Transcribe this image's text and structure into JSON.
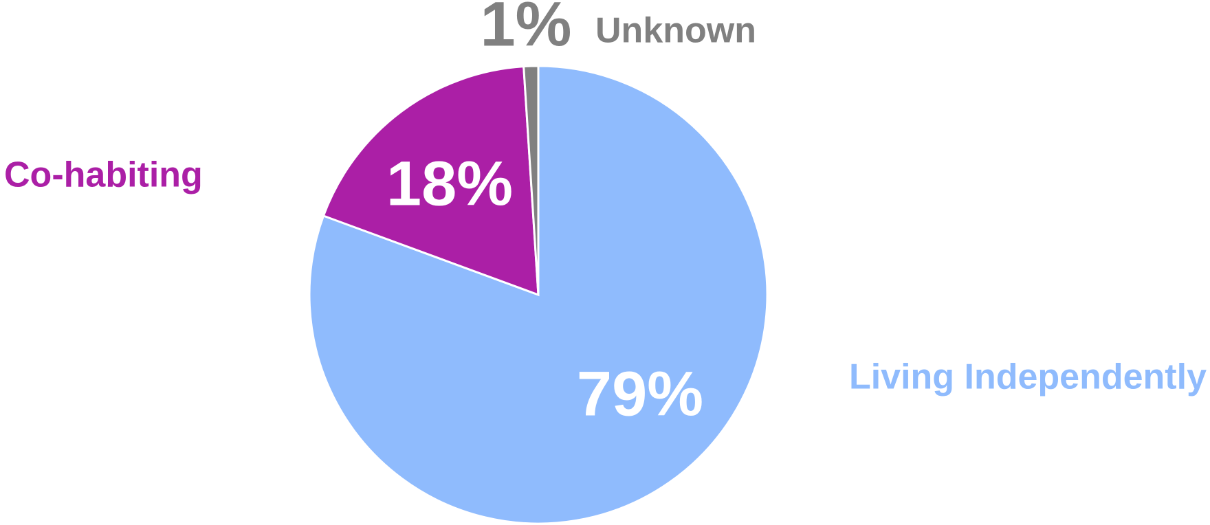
{
  "chart_data": {
    "type": "pie",
    "categories": [
      "Living Independently",
      "Co-habiting",
      "Unknown"
    ],
    "values": [
      79,
      18,
      1
    ],
    "value_labels": [
      "79%",
      "18%",
      "1%"
    ],
    "colors": [
      "#8fbbfd",
      "#ab1fa6",
      "#808080"
    ]
  }
}
